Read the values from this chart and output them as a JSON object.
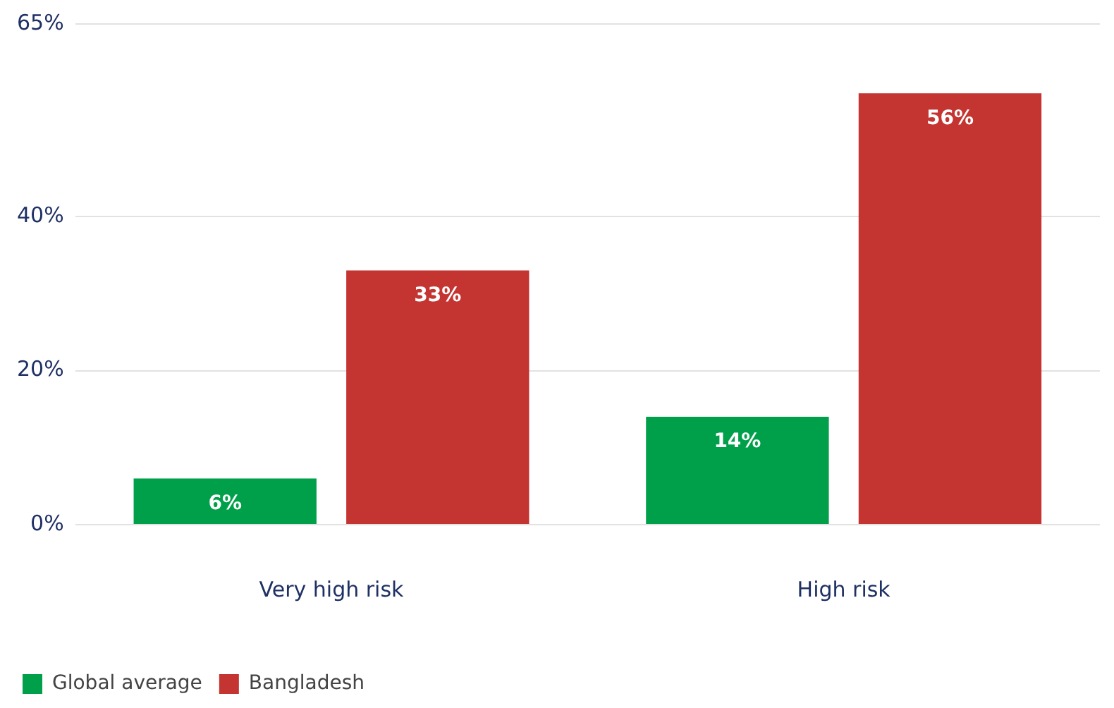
{
  "chart_data": {
    "type": "bar",
    "categories": [
      "Very high risk",
      "High risk"
    ],
    "series": [
      {
        "name": "Global average",
        "color": "#00a04b",
        "values": [
          6,
          14
        ],
        "value_labels": [
          "6%",
          "14%"
        ]
      },
      {
        "name": "Bangladesh",
        "color": "#c43431",
        "values": [
          33,
          56
        ],
        "value_labels": [
          "33%",
          "56%"
        ]
      }
    ],
    "ylim": [
      0,
      65
    ],
    "yticks": [
      {
        "value": 0,
        "label": "0%"
      },
      {
        "value": 20,
        "label": "20%"
      },
      {
        "value": 40,
        "label": "40%"
      },
      {
        "value": 65,
        "label": "65%"
      }
    ],
    "grid": "y",
    "legend": "bottom left"
  }
}
